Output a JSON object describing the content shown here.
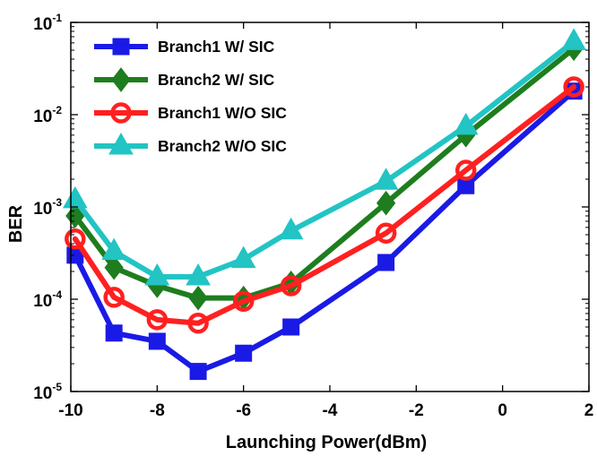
{
  "chart_data": {
    "type": "line",
    "xlabel": "Launching Power(dBm)",
    "ylabel": "BER",
    "xlim": [
      -10,
      2
    ],
    "ylim": [
      1e-05,
      0.1
    ],
    "yscale": "log",
    "grid": false,
    "legend": "top-left",
    "x_ticks": [
      "-10",
      "-8",
      "-6",
      "-4",
      "-2",
      "0",
      "2"
    ],
    "y_ticks": [
      {
        "base": "10",
        "exp": "-5"
      },
      {
        "base": "10",
        "exp": "-4"
      },
      {
        "base": "10",
        "exp": "-3"
      },
      {
        "base": "10",
        "exp": "-2"
      },
      {
        "base": "10",
        "exp": "-1"
      }
    ],
    "x": [
      -9.9,
      -9,
      -8,
      -7.05,
      -6,
      -4.9,
      -2.7,
      -0.85,
      1.65
    ],
    "series": [
      {
        "name": "Branch1 W/ SIC",
        "marker": "square",
        "color": "#1a1ae6",
        "values": [
          0.0003,
          4.3e-05,
          3.5e-05,
          1.65e-05,
          2.6e-05,
          5e-05,
          0.00025,
          0.0017,
          0.018
        ]
      },
      {
        "name": "Branch2 W/ SIC",
        "marker": "diamond",
        "color": "#1e7d1e",
        "values": [
          0.0008,
          0.00022,
          0.00014,
          0.000103,
          0.000103,
          0.00015,
          0.0011,
          0.006,
          0.052
        ]
      },
      {
        "name": "Branch1 W/O SIC",
        "marker": "circle",
        "color": "#ff2020",
        "values": [
          0.00045,
          0.000105,
          6e-05,
          5.5e-05,
          9.5e-05,
          0.00014,
          0.00052,
          0.0025,
          0.02
        ]
      },
      {
        "name": "Branch2 W/O SIC",
        "marker": "triangle",
        "color": "#22c4c4",
        "values": [
          0.0012,
          0.00033,
          0.000175,
          0.000175,
          0.00027,
          0.00055,
          0.0019,
          0.0075,
          0.062
        ]
      }
    ]
  }
}
